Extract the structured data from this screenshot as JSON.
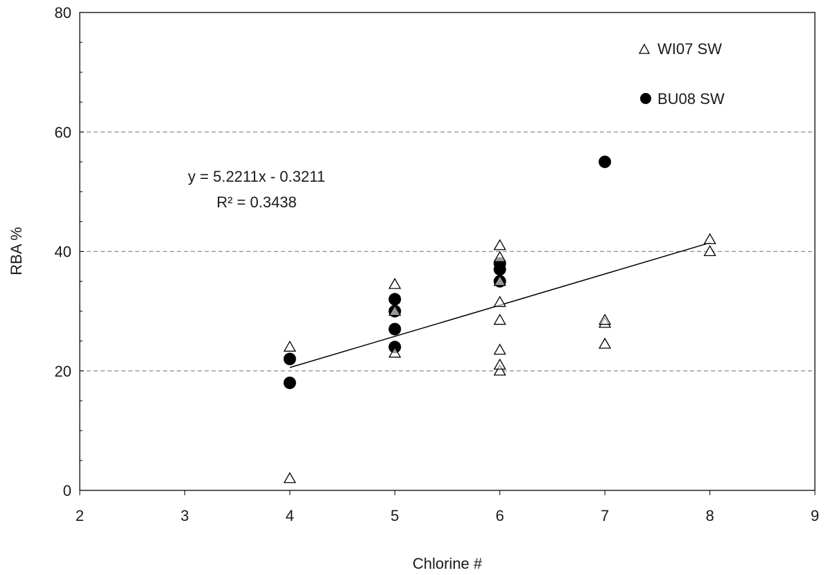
{
  "chart_data": {
    "type": "scatter",
    "title": "",
    "xlabel": "Chlorine #",
    "ylabel": "RBA %",
    "xlim": [
      2,
      9
    ],
    "ylim": [
      0,
      80
    ],
    "xticks": [
      "2",
      "3",
      "4",
      "5",
      "6",
      "7",
      "8",
      "9"
    ],
    "yticks": [
      "0",
      "20",
      "40",
      "60",
      "80"
    ],
    "grid": "horizontal dashed at 20, 40, 60",
    "legend_position": "top-right",
    "series": [
      {
        "name": "WI07 SW",
        "marker": "open-triangle",
        "points": [
          [
            4,
            2
          ],
          [
            4,
            24
          ],
          [
            5,
            23
          ],
          [
            5,
            30
          ],
          [
            5,
            34.5
          ],
          [
            6,
            20
          ],
          [
            6,
            21
          ],
          [
            6,
            23.5
          ],
          [
            6,
            28.5
          ],
          [
            6,
            31.5
          ],
          [
            6,
            35
          ],
          [
            6,
            39
          ],
          [
            6,
            41
          ],
          [
            7,
            24.5
          ],
          [
            7,
            28
          ],
          [
            7,
            28.5
          ],
          [
            8,
            40
          ],
          [
            8,
            42
          ]
        ]
      },
      {
        "name": "BU08 SW",
        "marker": "filled-circle",
        "points": [
          [
            4,
            18
          ],
          [
            4,
            22
          ],
          [
            5,
            24
          ],
          [
            5,
            27
          ],
          [
            5,
            30
          ],
          [
            5,
            32
          ],
          [
            6,
            35
          ],
          [
            6,
            37
          ],
          [
            6,
            38
          ],
          [
            7,
            55
          ]
        ]
      }
    ],
    "trendline": {
      "slope": 5.2211,
      "intercept": -0.3211,
      "x_range": [
        4,
        8
      ],
      "equation": "y = 5.2211x  - 0.3211",
      "r_squared": "R² = 0.3438"
    }
  }
}
